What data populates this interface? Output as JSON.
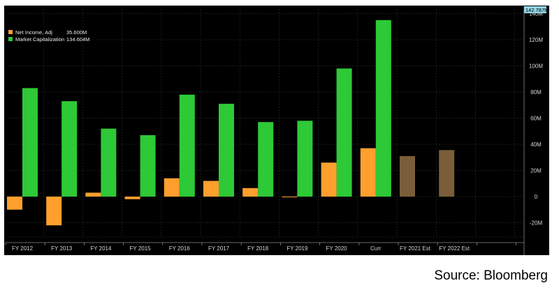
{
  "chart_data": {
    "type": "bar",
    "categories": [
      "FY 2012",
      "FY 2013",
      "FY 2014",
      "FY 2015",
      "FY 2016",
      "FY 2017",
      "FY 2018",
      "FY 2019",
      "FY 2020",
      "Curr",
      "FY 2021 Est",
      "FY 2022 Est"
    ],
    "series": [
      {
        "name": "Net Income, Adj",
        "legend_value": "35.600M",
        "color": "#ff9f2e",
        "values": [
          -10,
          -22,
          3,
          -2,
          14,
          12,
          6.5,
          -0.5,
          26,
          37,
          null,
          null
        ],
        "estimate_values": [
          null,
          null,
          null,
          null,
          null,
          null,
          null,
          null,
          null,
          null,
          31,
          35.6
        ],
        "estimate_color": "#7a5e3a"
      },
      {
        "name": "Market Capitalization",
        "legend_value": "134.604M",
        "color": "#2ec936",
        "values": [
          83,
          73,
          52,
          47,
          78,
          71,
          57,
          58,
          98,
          135,
          null,
          null
        ]
      }
    ],
    "y_unit": "M",
    "ylim": [
      -40,
      140
    ],
    "y_ticks": [
      "140M",
      "120M",
      "100M",
      "80M",
      "60M",
      "40M",
      "20M",
      "0",
      "-20M"
    ],
    "y_tick_values": [
      140,
      120,
      100,
      80,
      60,
      40,
      20,
      0,
      -20
    ],
    "last_value_label": "142.787M",
    "last_value_color": "#8fd6e6",
    "grid": true,
    "legend_placement": "top-left",
    "background": "#000000"
  },
  "source_text": "Source: Bloomberg"
}
